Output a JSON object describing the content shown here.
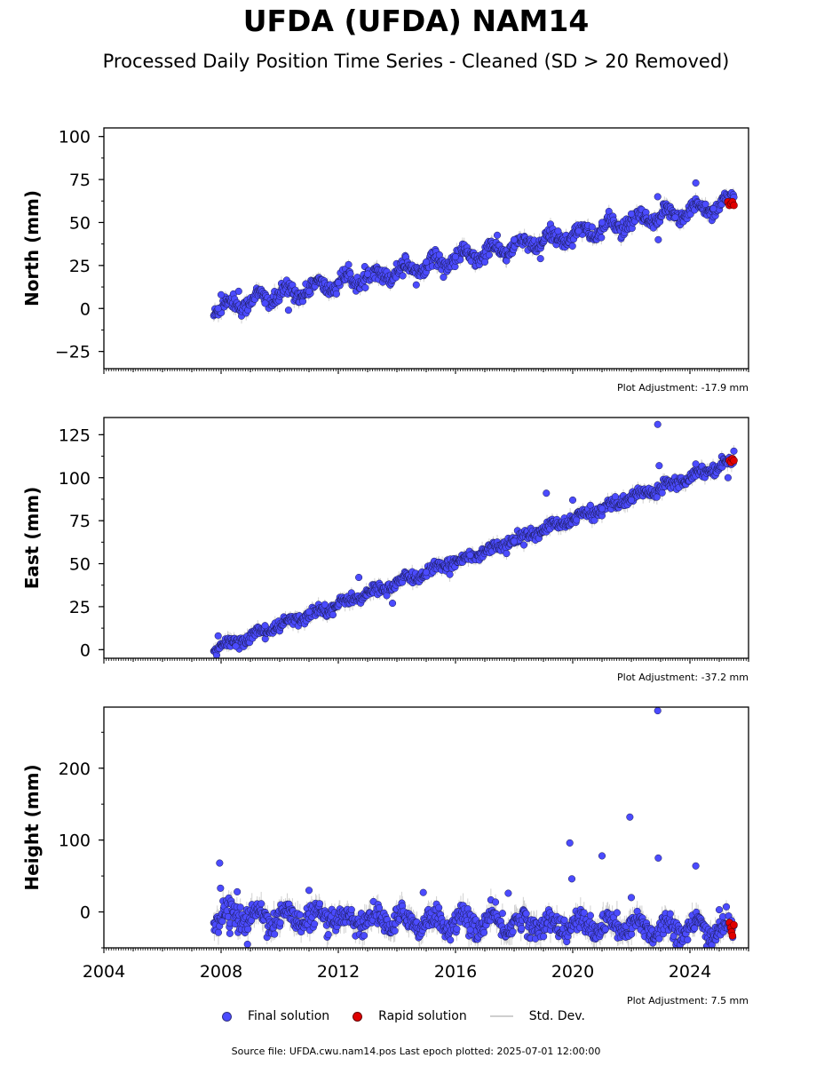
{
  "title": "UFDA (UFDA) NAM14",
  "subtitle": "Processed Daily Position Time Series - Cleaned (SD > 20 Removed)",
  "legend": {
    "final": "Final solution",
    "rapid": "Rapid solution",
    "std": "Std. Dev."
  },
  "colors": {
    "final": "#4b4bff",
    "rapid": "#e00000",
    "std": "#bdbdbd"
  },
  "footer": "Source file: UFDA.cwu.nam14.pos  Last epoch plotted: 2025-07-01 12:00:00",
  "chart_data": [
    {
      "type": "scatter",
      "ylabel": "North (mm)",
      "adjustment": "Plot Adjustment: -17.9 mm",
      "xlim": [
        2004,
        2026
      ],
      "ylim": [
        -35,
        105
      ],
      "yticks": [
        -25,
        0,
        25,
        50,
        75,
        100
      ],
      "ytick_labels": [
        "−25",
        "0",
        "25",
        "50",
        "75",
        "100"
      ],
      "show_xtick_labels": false,
      "trend": {
        "start": [
          2007.75,
          0
        ],
        "end": [
          2025.5,
          62
        ],
        "seasonal_amp": 3.5,
        "noise": 2.2,
        "err": 3
      },
      "final": {
        "x": [
          2007.9,
          2008.0,
          2008.6,
          2009.5,
          2010.3,
          2011.0,
          2012.0,
          2013.0,
          2014.2,
          2015.0,
          2016.0,
          2017.0,
          2018.0,
          2018.9,
          2019.5,
          2020.2,
          2021.0,
          2022.0,
          2022.9,
          2022.92,
          2023.5,
          2024.2,
          2024.8
        ],
        "y": [
          0,
          8,
          10,
          3,
          -1,
          10,
          15,
          20,
          19,
          27,
          30,
          27,
          40,
          29,
          45,
          45,
          50,
          55,
          65,
          40,
          53,
          73,
          58
        ]
      },
      "rapid": {
        "x": [
          2025.3,
          2025.35,
          2025.4,
          2025.45,
          2025.5
        ],
        "y": [
          62,
          60,
          61,
          62,
          60
        ]
      }
    },
    {
      "type": "scatter",
      "ylabel": "East (mm)",
      "adjustment": "Plot Adjustment: -37.2 mm",
      "xlim": [
        2004,
        2026
      ],
      "ylim": [
        -5,
        135
      ],
      "yticks": [
        0,
        25,
        50,
        75,
        100,
        125
      ],
      "ytick_labels": [
        "0",
        "25",
        "50",
        "75",
        "100",
        "125"
      ],
      "show_xtick_labels": false,
      "trend": {
        "start": [
          2007.75,
          0
        ],
        "end": [
          2025.5,
          110
        ],
        "seasonal_amp": 1.5,
        "noise": 1.6,
        "err": 3
      },
      "final": {
        "x": [
          2007.9,
          2008.5,
          2009.5,
          2011.0,
          2012.7,
          2013.85,
          2015.0,
          2016.5,
          2018.0,
          2019.1,
          2020.0,
          2021.0,
          2022.0,
          2022.9,
          2022.95,
          2024.2,
          2025.3
        ],
        "y": [
          8,
          2,
          14,
          22,
          42,
          27,
          45,
          55,
          63,
          91,
          87,
          82,
          87,
          131,
          107,
          108,
          100
        ]
      },
      "rapid": {
        "x": [
          2025.35,
          2025.4,
          2025.45,
          2025.5
        ],
        "y": [
          110,
          109,
          111,
          110
        ]
      }
    },
    {
      "type": "scatter",
      "ylabel": "Height (mm)",
      "adjustment": "Plot Adjustment: 7.5 mm",
      "xlim": [
        2004,
        2026
      ],
      "ylim": [
        -50,
        285
      ],
      "yticks": [
        0,
        100,
        200
      ],
      "ytick_labels": [
        "0",
        "100",
        "200"
      ],
      "xticks": [
        2004,
        2008,
        2012,
        2016,
        2020,
        2024
      ],
      "show_xtick_labels": true,
      "trend": {
        "start": [
          2007.75,
          -5
        ],
        "end": [
          2025.5,
          -25
        ],
        "seasonal_amp": 10,
        "noise": 8,
        "err": 12
      },
      "final": {
        "x": [
          2007.95,
          2007.98,
          2008.3,
          2008.55,
          2008.9,
          2011.0,
          2014.9,
          2016.5,
          2017.8,
          2019.9,
          2019.97,
          2021.0,
          2021.95,
          2022.0,
          2022.9,
          2022.92,
          2024.2,
          2025.0
        ],
        "y": [
          68,
          33,
          -30,
          28,
          -45,
          30,
          27,
          -25,
          26,
          96,
          46,
          78,
          132,
          20,
          280,
          75,
          64,
          3
        ]
      },
      "rapid": {
        "x": [
          2025.35,
          2025.4,
          2025.42,
          2025.45,
          2025.5
        ],
        "y": [
          -15,
          -22,
          -28,
          -33,
          -18
        ]
      }
    }
  ]
}
